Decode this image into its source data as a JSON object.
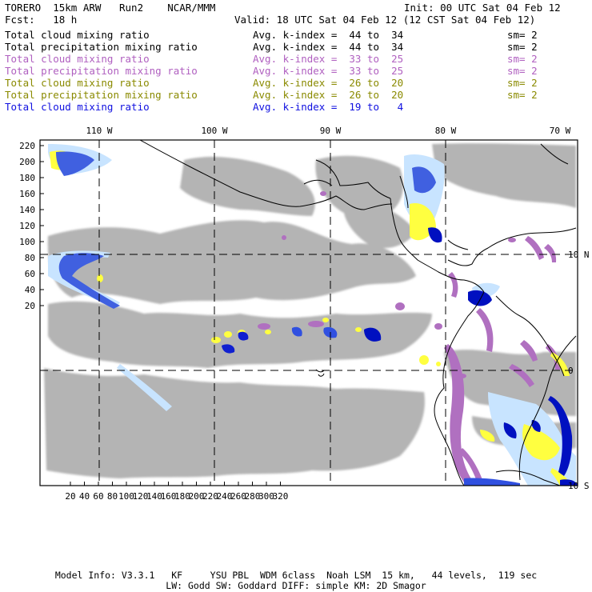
{
  "header": {
    "line1_left": "TORERO  15km ARW   Run2    NCAR/MMM",
    "line1_right": "Init: 00 UTC Sat 04 Feb 12",
    "line2_left": "Fcst:   18 h",
    "line2_right": "Valid: 18 UTC Sat 04 Feb 12 (12 CST Sat 04 Feb 12)"
  },
  "fields": [
    {
      "name": "Total cloud mixing ratio",
      "avg": "Avg. k-index =  44 to  34",
      "sm": "sm= 2",
      "color": "#000000"
    },
    {
      "name": "Total precipitation mixing ratio",
      "avg": "Avg. k-index =  44 to  34",
      "sm": "sm= 2",
      "color": "#000000"
    },
    {
      "name": "Total cloud mixing ratio",
      "avg": "Avg. k-index =  33 to  25",
      "sm": "sm= 2",
      "color": "#b060c0"
    },
    {
      "name": "Total precipitation mixing ratio",
      "avg": "Avg. k-index =  33 to  25",
      "sm": "sm= 2",
      "color": "#b060c0"
    },
    {
      "name": "Total cloud mixing ratio",
      "avg": "Avg. k-index =  26 to  20",
      "sm": "sm= 2",
      "color": "#8a8a00"
    },
    {
      "name": "Total precipitation mixing ratio",
      "avg": "Avg. k-index =  26 to  20",
      "sm": "sm= 2",
      "color": "#8a8a00"
    },
    {
      "name": "Total cloud mixing ratio",
      "avg": "Avg. k-index =  19 to   4",
      "sm": "",
      "color": "#1010e0"
    }
  ],
  "map": {
    "top_lon_labels": [
      "110 W",
      "100 W",
      "90 W",
      "80 W",
      "70 W"
    ],
    "right_lat_labels": [
      "10 N",
      "0",
      "10 S"
    ],
    "left_ticks": [
      "220",
      "200",
      "180",
      "160",
      "140",
      "120",
      "100",
      "80",
      "60",
      "40",
      "20"
    ],
    "bottom_ticks": [
      "20",
      "40",
      "60",
      "80",
      "100",
      "120",
      "140",
      "160",
      "180",
      "200",
      "220",
      "240",
      "260",
      "280",
      "300",
      "320"
    ],
    "colors": {
      "gray": "#b4b4b4",
      "magenta": "#b070c0",
      "yellow": "#ffff40",
      "lightblue": "#c8e4ff",
      "blue": "#4060e0",
      "darkblue": "#0010c0"
    }
  },
  "footer": {
    "line1": "Model Info: V3.3.1   KF     YSU PBL  WDM 6class  Noah LSM  15 km,   44 levels,  119 sec",
    "line2": "LW: Godd SW: Goddard DIFF: simple KM: 2D Smagor"
  }
}
